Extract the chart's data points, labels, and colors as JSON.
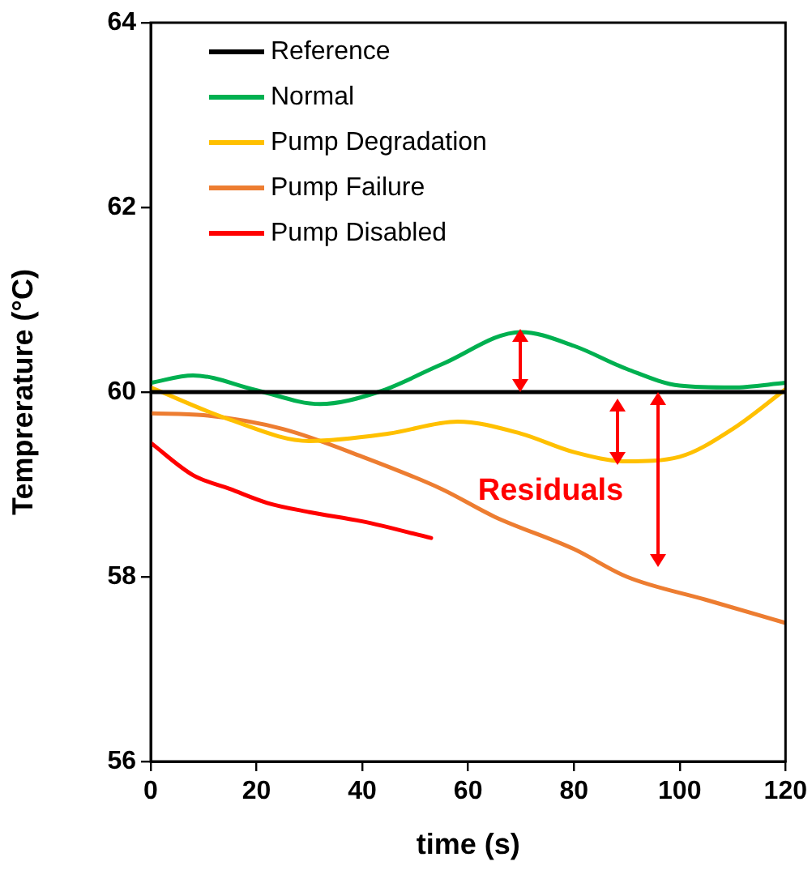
{
  "chart_data": {
    "type": "line",
    "xlabel": "time (s)",
    "ylabel": "Temprerature (°C)",
    "xlim": [
      0,
      120
    ],
    "xticks": [
      0,
      20,
      40,
      60,
      80,
      100,
      120
    ],
    "ylim": [
      56,
      64
    ],
    "yticks": [
      56,
      58,
      60,
      62,
      64
    ],
    "grid": false,
    "legend": "top left",
    "marker": "none",
    "line_style": "solid",
    "annotations": [
      "Residuals"
    ],
    "series": [
      {
        "name": "Reference",
        "color": "#000000",
        "x": [
          0,
          120
        ],
        "values": [
          60,
          60
        ]
      },
      {
        "name": "Normal",
        "color": "#00b050",
        "x": [
          0,
          8,
          20,
          32,
          43,
          55,
          70,
          80,
          90,
          100,
          110,
          120
        ],
        "values": [
          60.1,
          60.18,
          60.02,
          59.87,
          60.0,
          60.3,
          60.65,
          60.5,
          60.25,
          60.07,
          60.05,
          60.1
        ]
      },
      {
        "name": "Pump Degradation",
        "color": "#ffc000",
        "x": [
          0,
          15,
          30,
          45,
          58,
          70,
          80,
          90,
          100,
          110,
          120
        ],
        "values": [
          60.05,
          59.7,
          59.47,
          59.55,
          59.68,
          59.55,
          59.35,
          59.25,
          59.3,
          59.6,
          60.03
        ]
      },
      {
        "name": "Pump Failure",
        "color": "#ed7d31",
        "x": [
          0,
          10,
          25,
          40,
          55,
          65,
          80,
          90,
          105,
          120
        ],
        "values": [
          59.77,
          59.75,
          59.6,
          59.3,
          58.95,
          58.65,
          58.3,
          58.0,
          57.75,
          57.5
        ]
      },
      {
        "name": "Pump Disabled",
        "color": "#ff0000",
        "x": [
          0,
          8,
          15,
          22,
          30,
          40,
          53
        ],
        "values": [
          59.45,
          59.1,
          58.95,
          58.8,
          58.7,
          58.6,
          58.42
        ]
      }
    ]
  }
}
